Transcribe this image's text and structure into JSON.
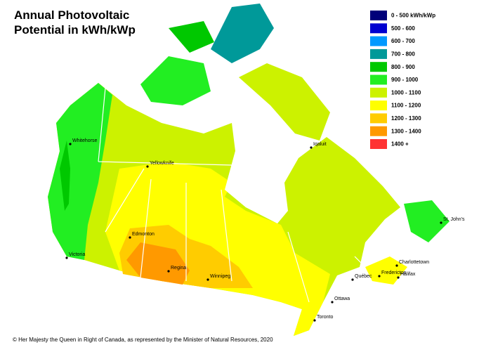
{
  "title_lines": [
    "Annual Photovoltaic",
    "Potential in kWh/kWp"
  ],
  "legend": [
    {
      "label": "0 - 500 kWh/kWp",
      "color": "#00007a"
    },
    {
      "label": "500 - 600",
      "color": "#0000d0"
    },
    {
      "label": "600 - 700",
      "color": "#0099ff"
    },
    {
      "label": "700 - 800",
      "color": "#009999"
    },
    {
      "label": "800 - 900",
      "color": "#00c800"
    },
    {
      "label": "900 - 1000",
      "color": "#22ee22"
    },
    {
      "label": "1000 - 1100",
      "color": "#ccf200"
    },
    {
      "label": "1100 - 1200",
      "color": "#ffff00"
    },
    {
      "label": "1200 - 1300",
      "color": "#ffcc00"
    },
    {
      "label": "1300 - 1400",
      "color": "#ff9900"
    },
    {
      "label": "1400 +",
      "color": "#ff3333"
    }
  ],
  "cities": [
    "Whitehorse",
    "Yellowknife",
    "Iqaluit",
    "St. John's",
    "Edmonton",
    "Victoria",
    "Regina",
    "Winnipeg",
    "Charlottetown",
    "Fredericton",
    "Halifax",
    "Québec",
    "Ottawa",
    "Toronto"
  ],
  "credit": "© Her Majesty the Queen in Right of Canada, as represented by the Minister of Natural Resources, 2020"
}
